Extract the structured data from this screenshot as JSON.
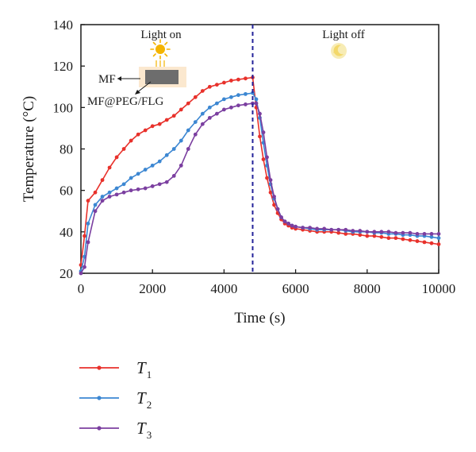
{
  "chart_data": {
    "type": "line",
    "xlabel": "Time (s)",
    "ylabel": "Temperature (°C)",
    "xlim": [
      0,
      10000
    ],
    "ylim": [
      20,
      140
    ],
    "xticks": [
      0,
      2000,
      4000,
      6000,
      8000,
      10000
    ],
    "yticks": [
      20,
      40,
      60,
      80,
      100,
      120,
      140
    ],
    "xtick_labels": [
      "0",
      "2000",
      "4000",
      "6000",
      "8000",
      "10000"
    ],
    "ytick_labels": [
      "20",
      "40",
      "60",
      "80",
      "100",
      "120",
      "140"
    ],
    "grid": false,
    "legend_position": "below",
    "divider_x": 4800,
    "annotations": {
      "light_on": "Light on",
      "light_off": "Light off",
      "mf_label": "MF",
      "composite_label": "MF@PEG/FLG"
    },
    "colors": {
      "T1": "#e8312b",
      "T2": "#3c87d2",
      "T3": "#7b3fa0",
      "divider": "#23229a",
      "sun": "#f4b400",
      "moon": "#f3e08a"
    },
    "series": [
      {
        "name": "T",
        "subscript": "1",
        "color": "#e8312b",
        "x": [
          0,
          100,
          200,
          400,
          600,
          800,
          1000,
          1200,
          1400,
          1600,
          1800,
          2000,
          2200,
          2400,
          2600,
          2800,
          3000,
          3200,
          3400,
          3600,
          3800,
          4000,
          4200,
          4400,
          4600,
          4800,
          4900,
          5000,
          5100,
          5200,
          5300,
          5400,
          5500,
          5600,
          5700,
          5800,
          5900,
          6000,
          6200,
          6400,
          6600,
          6800,
          7000,
          7200,
          7400,
          7600,
          7800,
          8000,
          8200,
          8400,
          8600,
          8800,
          9000,
          9200,
          9400,
          9600,
          9800,
          10000
        ],
        "values": [
          24,
          38,
          55,
          59,
          65,
          71,
          76,
          80,
          84,
          87,
          89,
          91,
          92,
          94,
          96,
          99,
          102,
          105,
          108,
          110,
          111,
          112,
          113,
          113.5,
          114,
          114.5,
          100,
          86,
          75,
          66,
          59,
          53,
          49,
          46,
          44,
          43,
          42,
          41.5,
          41,
          40.5,
          40,
          40,
          40,
          39.5,
          39,
          39,
          38.5,
          38,
          38,
          37.5,
          37,
          37,
          36.5,
          36,
          35.5,
          35,
          34.5,
          34
        ]
      },
      {
        "name": "T",
        "subscript": "2",
        "color": "#3c87d2",
        "x": [
          0,
          100,
          200,
          400,
          600,
          800,
          1000,
          1200,
          1400,
          1600,
          1800,
          2000,
          2200,
          2400,
          2600,
          2800,
          3000,
          3200,
          3400,
          3600,
          3800,
          4000,
          4200,
          4400,
          4600,
          4800,
          4900,
          5000,
          5100,
          5200,
          5300,
          5400,
          5500,
          5600,
          5700,
          5800,
          5900,
          6000,
          6200,
          6400,
          6600,
          6800,
          7000,
          7200,
          7400,
          7600,
          7800,
          8000,
          8200,
          8400,
          8600,
          8800,
          9000,
          9200,
          9400,
          9600,
          9800,
          10000
        ],
        "values": [
          21,
          28,
          44,
          53,
          57,
          59,
          61,
          63,
          66,
          68,
          70,
          72,
          74,
          77,
          80,
          84,
          89,
          93,
          97,
          100,
          102,
          104,
          105,
          106,
          106.5,
          107,
          104,
          95,
          83,
          72,
          63,
          56,
          51,
          47,
          45,
          44,
          43,
          42.5,
          42,
          41.5,
          41,
          41,
          41,
          41,
          40.5,
          40,
          40,
          40,
          39.5,
          39.5,
          39,
          39,
          38.5,
          38.5,
          38,
          38,
          37.5,
          37
        ]
      },
      {
        "name": "T",
        "subscript": "3",
        "color": "#7b3fa0",
        "x": [
          0,
          100,
          200,
          400,
          600,
          800,
          1000,
          1200,
          1400,
          1600,
          1800,
          2000,
          2200,
          2400,
          2600,
          2800,
          3000,
          3200,
          3400,
          3600,
          3800,
          4000,
          4200,
          4400,
          4600,
          4800,
          4900,
          5000,
          5100,
          5200,
          5300,
          5400,
          5500,
          5600,
          5700,
          5800,
          5900,
          6000,
          6200,
          6400,
          6600,
          6800,
          7000,
          7200,
          7400,
          7600,
          7800,
          8000,
          8200,
          8400,
          8600,
          8800,
          9000,
          9200,
          9400,
          9600,
          9800,
          10000
        ],
        "values": [
          20,
          23,
          35,
          50,
          55,
          57,
          58,
          59,
          60,
          60.5,
          61,
          62,
          63,
          64,
          67,
          72,
          80,
          87,
          92,
          95,
          97,
          99,
          100,
          101,
          101.5,
          102,
          102,
          97,
          88,
          76,
          65,
          57,
          51,
          47,
          45,
          44,
          43,
          42.5,
          42,
          42,
          41.5,
          41.5,
          41,
          41,
          41,
          40.5,
          40.5,
          40,
          40,
          40,
          40,
          39.5,
          39.5,
          39.5,
          39,
          39,
          39,
          39
        ]
      }
    ]
  }
}
